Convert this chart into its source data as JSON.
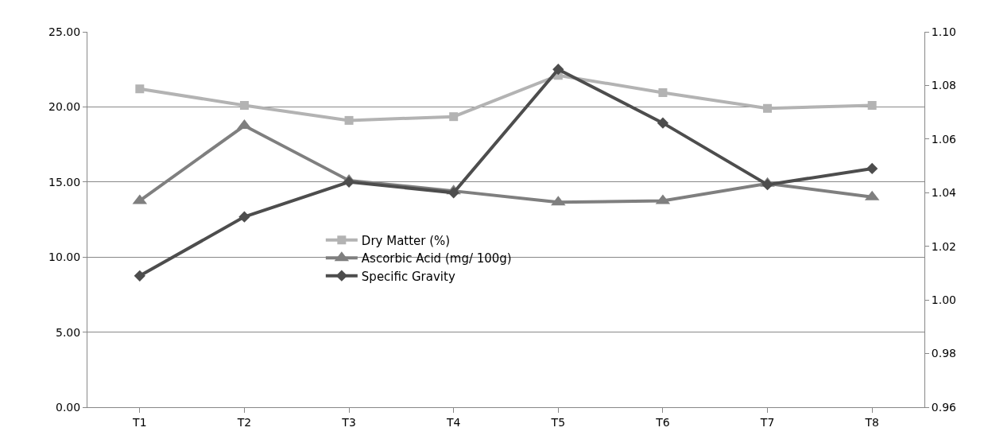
{
  "chart_data": {
    "type": "line",
    "categories": [
      "T1",
      "T2",
      "T3",
      "T4",
      "T5",
      "T6",
      "T7",
      "T8"
    ],
    "series": [
      {
        "name": "Dry Matter (%)",
        "color": "#b3b3b3",
        "marker": "square",
        "values": [
          21.2,
          20.1,
          19.1,
          19.35,
          22.1,
          20.95,
          19.9,
          20.1
        ]
      },
      {
        "name": "Ascorbic Acid (mg/ 100g)",
        "color": "#7f7f7f",
        "marker": "triangle",
        "values": [
          13.75,
          18.75,
          15.1,
          14.4,
          13.65,
          13.75,
          14.9,
          14.0
        ]
      },
      {
        "name": "Specific Gravity",
        "color": "#4d4d4d",
        "marker": "diamond",
        "axis": "y2",
        "values": [
          1.009,
          1.031,
          1.044,
          1.04,
          1.086,
          1.066,
          1.043,
          1.049
        ]
      }
    ],
    "ylim": [
      0,
      25
    ],
    "yticks": [
      {
        "value": 0,
        "label": "0.00"
      },
      {
        "value": 5,
        "label": "5.00"
      },
      {
        "value": 10,
        "label": "10.00"
      },
      {
        "value": 15,
        "label": "15.00"
      },
      {
        "value": 20,
        "label": "20.00"
      },
      {
        "value": 25,
        "label": "25.00"
      }
    ],
    "y2lim": [
      0.96,
      1.1
    ],
    "y2ticks": [
      {
        "value": 0.96,
        "label": "0.96"
      },
      {
        "value": 0.98,
        "label": "0.98"
      },
      {
        "value": 1.0,
        "label": "1.00"
      },
      {
        "value": 1.02,
        "label": "1.02"
      },
      {
        "value": 1.04,
        "label": "1.04"
      },
      {
        "value": 1.06,
        "label": "1.06"
      },
      {
        "value": 1.08,
        "label": "1.08"
      },
      {
        "value": 1.1,
        "label": "1.10"
      }
    ],
    "grid": "y",
    "legend": "center",
    "line_style": "solid"
  }
}
